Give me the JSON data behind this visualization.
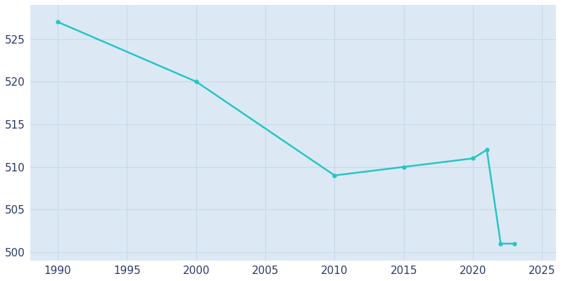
{
  "years": [
    1990,
    2000,
    2010,
    2015,
    2020,
    2021,
    2022,
    2023
  ],
  "population": [
    527,
    520,
    509,
    510,
    511,
    512,
    501,
    501
  ],
  "line_color": "#28c5c5",
  "marker": "o",
  "marker_size": 3.5,
  "linewidth": 1.8,
  "plot_background_color": "#dce9f5",
  "fig_background_color": "#ffffff",
  "grid_color": "#c8d8e8",
  "tick_label_color": "#2b3a6b",
  "tick_label_fontsize": 11,
  "xlim": [
    1988,
    2026
  ],
  "ylim": [
    499,
    529
  ],
  "xticks": [
    1990,
    1995,
    2000,
    2005,
    2010,
    2015,
    2020,
    2025
  ],
  "yticks": [
    500,
    505,
    510,
    515,
    520,
    525
  ]
}
